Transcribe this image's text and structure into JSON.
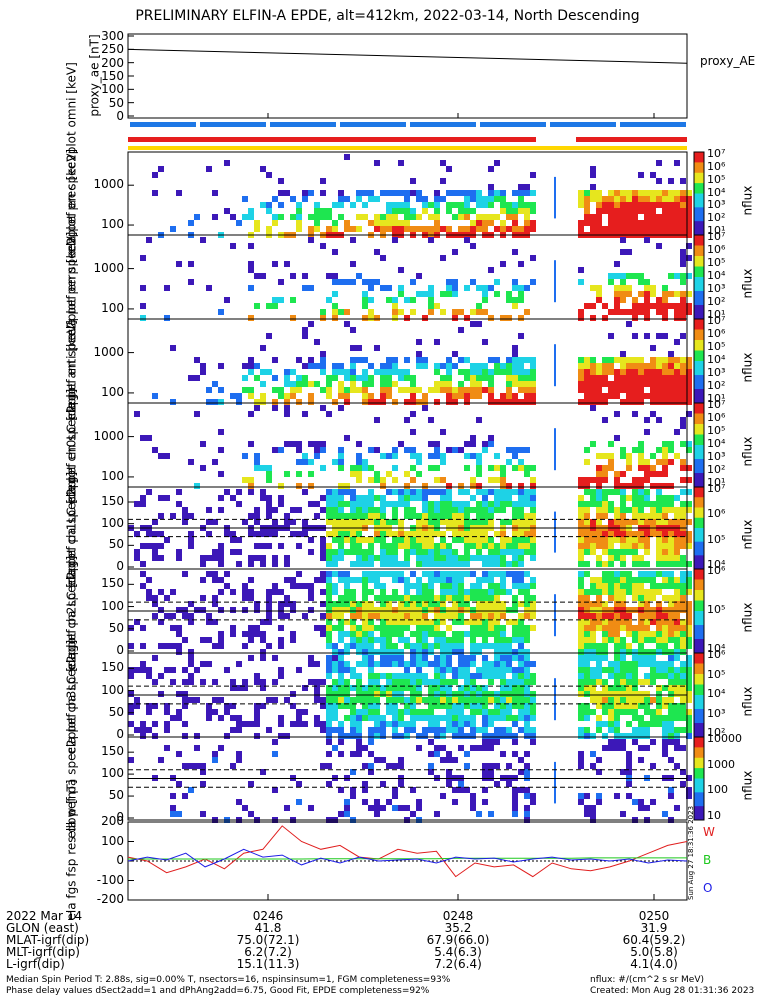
{
  "page": {
    "title": "PRELIMINARY ELFIN-A EPDE, alt=412km, 2022-03-14, North Descending",
    "footer_left_1": "Median Spin Period T: 2.88s, sig=0.00% T, nsectors=16, nspinsinsum=1, FGM completeness=93%",
    "footer_left_2": "Phase delay values dSect2add=1 and dPhAng2add=6.75, Good Fit, EPDE completeness=92%",
    "footer_right_1": "nflux: #/(cm^2 s sr MeV)",
    "footer_right_2": "Created: Mon Aug 28 01:31:36 2023",
    "side_stamp": "Sun Aug 27 18:31:36 2023"
  },
  "colors": {
    "status_blue": "#1e78e6",
    "status_red": "#e61e1e",
    "status_yellow": "#ffd700",
    "trace_red": "#e01e1e",
    "trace_green": "#1ec81e",
    "trace_blue": "#1e1ee6"
  },
  "chart_data": [
    {
      "type": "line",
      "panel": "proxy_ae",
      "ylabel": [
        "proxy_ae",
        "[nT]"
      ],
      "yticks": [
        "300",
        "250",
        "200",
        "150",
        "100",
        "50",
        "0"
      ],
      "ylim": [
        0,
        300
      ],
      "xlim_minutes": [
        0,
        6.7
      ],
      "series": [
        {
          "name": "proxy_AE",
          "x": [
            0,
            6.7
          ],
          "values": [
            250,
            198
          ]
        }
      ]
    },
    {
      "type": "heatmap",
      "panel": "spectrogram",
      "ylabel": [
        "ela",
        "pef",
        "en",
        "spec2plot",
        "omni",
        "[keV]"
      ],
      "yticks": [
        "1000",
        "100"
      ],
      "colorbar_ticks": [
        "10^7",
        "10^6",
        "10^5",
        "10^4",
        "10^3",
        "10^2",
        "10^1"
      ],
      "zlabel": "nflux"
    },
    {
      "type": "heatmap",
      "panel": "spectrogram",
      "ylabel": [
        "ela",
        "pef",
        "en",
        "spec2plot",
        "prec",
        "[keV]"
      ],
      "yticks": [
        "1000",
        "100"
      ],
      "colorbar_ticks": [
        "10^7",
        "10^6",
        "10^5",
        "10^4",
        "10^3",
        "10^2",
        "10^1"
      ],
      "zlabel": "nflux"
    },
    {
      "type": "heatmap",
      "panel": "spectrogram",
      "ylabel": [
        "ela",
        "pef",
        "en",
        "spec2plot",
        "perp",
        "[keV]"
      ],
      "yticks": [
        "1000",
        "100"
      ],
      "colorbar_ticks": [
        "10^7",
        "10^6",
        "10^5",
        "10^4",
        "10^3",
        "10^2",
        "10^1"
      ],
      "zlabel": "nflux"
    },
    {
      "type": "heatmap",
      "panel": "spectrogram",
      "ylabel": [
        "ela",
        "pef",
        "en",
        "spec2plot",
        "anti",
        "[keV]"
      ],
      "yticks": [
        "1000",
        "100"
      ],
      "colorbar_ticks": [
        "10^7",
        "10^6",
        "10^5",
        "10^4",
        "10^3",
        "10^2",
        "10^1"
      ],
      "zlabel": "nflux"
    },
    {
      "type": "heatmap",
      "panel": "pitch-angle",
      "ylabel": [
        "ela",
        "pef",
        "pa",
        "spec2plot",
        "ch0LC",
        "[deg]"
      ],
      "yticks": [
        "150",
        "100",
        "50",
        "0"
      ],
      "colorbar_ticks": [
        "10^7",
        "10^6",
        "10^5",
        "10^4"
      ],
      "zlabel": "nflux"
    },
    {
      "type": "heatmap",
      "panel": "pitch-angle",
      "ylabel": [
        "ela",
        "pef",
        "pa",
        "spec2plot",
        "ch1LC",
        "[deg]"
      ],
      "yticks": [
        "150",
        "100",
        "50",
        "0"
      ],
      "colorbar_ticks": [
        "10^6",
        "10^5",
        "10^4"
      ],
      "zlabel": "nflux"
    },
    {
      "type": "heatmap",
      "panel": "pitch-angle",
      "ylabel": [
        "ela",
        "pef",
        "pa",
        "spec2plot",
        "ch2LC",
        "[deg]"
      ],
      "yticks": [
        "150",
        "100",
        "50",
        "0"
      ],
      "colorbar_ticks": [
        "10^6",
        "10^5",
        "10^4",
        "10^3",
        "10^2"
      ],
      "zlabel": "nflux"
    },
    {
      "type": "heatmap",
      "panel": "pitch-angle",
      "ylabel": [
        "ela",
        "pef",
        "pa",
        "spec2plot",
        "ch3LC",
        "[deg]"
      ],
      "yticks": [
        "150",
        "100",
        "50",
        "0"
      ],
      "colorbar_ticks": [
        "10000",
        "1000",
        "100",
        "10"
      ],
      "zlabel": "nflux"
    },
    {
      "type": "line",
      "panel": "magnetic",
      "ylabel": [
        "ela",
        "fgs",
        "fsp",
        "res",
        "dbw",
        "[nT]"
      ],
      "yticks": [
        "200",
        "100",
        "0",
        "-100",
        "-200"
      ],
      "ylim": [
        -200,
        200
      ],
      "series": [
        {
          "name": "W",
          "values": [
            20,
            0,
            -60,
            -30,
            10,
            -40,
            40,
            60,
            180,
            100,
            60,
            80,
            20,
            10,
            60,
            40,
            50,
            -80,
            -10,
            -30,
            -20,
            -80,
            -10,
            -40,
            -50,
            -30,
            0,
            40,
            80,
            100
          ]
        },
        {
          "name": "B",
          "values": [
            10,
            10,
            10,
            10,
            10,
            10,
            10,
            10,
            10,
            10,
            12,
            12,
            12,
            12,
            12,
            12,
            12,
            14,
            14,
            14,
            14,
            14,
            14,
            14,
            16,
            16,
            16,
            16,
            16,
            16
          ]
        },
        {
          "name": "O",
          "values": [
            0,
            20,
            5,
            40,
            -30,
            10,
            60,
            20,
            30,
            -20,
            15,
            -10,
            20,
            0,
            5,
            10,
            -10,
            20,
            10,
            15,
            -5,
            10,
            20,
            5,
            10,
            0,
            10,
            -10,
            5,
            0
          ]
        }
      ]
    }
  ],
  "time_axis": {
    "tick_labels": [
      "0246",
      "0248",
      "0250"
    ],
    "rows": [
      {
        "label": "2022 Mar 14",
        "values": [
          "0246",
          "0248",
          "0250"
        ]
      },
      {
        "label": "GLON (east)",
        "values": [
          "41.8",
          "35.2",
          "31.9"
        ]
      },
      {
        "label": "MLAT-igrf(dip)",
        "values": [
          "75.0(72.1)",
          "67.9(66.0)",
          "60.4(59.2)"
        ]
      },
      {
        "label": "MLT-igrf(dip)",
        "values": [
          "6.2(7.2)",
          "5.4(6.3)",
          "5.0(5.8)"
        ]
      },
      {
        "label": "L-igrf(dip)",
        "values": [
          "15.1(11.3)",
          "7.2(6.4)",
          "4.1(4.0)"
        ]
      }
    ]
  }
}
